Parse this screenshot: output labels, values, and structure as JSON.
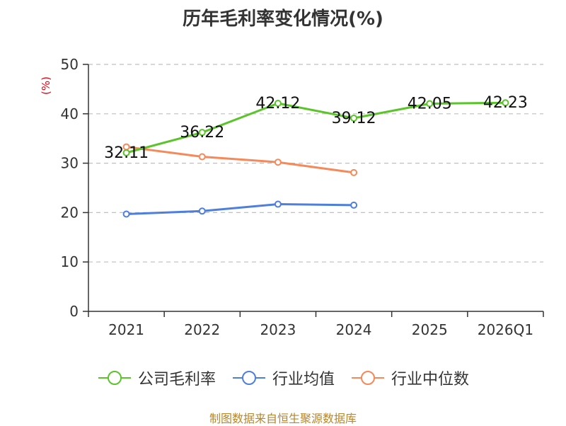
{
  "chart_data": {
    "type": "line",
    "title": "历年毛利率变化情况(%)",
    "ylabel": "(%)",
    "xlabel": "",
    "categories": [
      "2021",
      "2022",
      "2023",
      "2024",
      "2025",
      "2026Q1"
    ],
    "ylim": [
      0,
      50
    ],
    "yticks": [
      0,
      10,
      20,
      30,
      40,
      50
    ],
    "grid": true,
    "legend_position": "bottom",
    "series": [
      {
        "name": "公司毛利率",
        "color": "#5cc42b",
        "values": [
          32.11,
          36.22,
          42.12,
          39.12,
          42.05,
          42.23
        ],
        "labels": [
          "32.11",
          "36.22",
          "42.12",
          "39.12",
          "42.05",
          "42.23"
        ]
      },
      {
        "name": "行业均值",
        "color": "#4f7fdc",
        "values": [
          19.7,
          20.3,
          21.7,
          21.5,
          null,
          null
        ]
      },
      {
        "name": "行业中位数",
        "color": "#f5895a",
        "values": [
          33.3,
          31.3,
          30.2,
          28.1,
          null,
          null
        ]
      }
    ]
  },
  "source": "制图数据来自恒生聚源数据库"
}
